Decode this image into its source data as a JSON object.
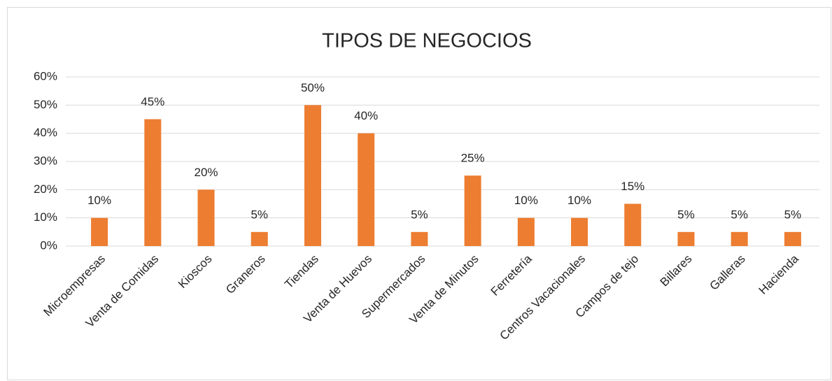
{
  "chart_data": {
    "type": "bar",
    "title": "TIPOS DE NEGOCIOS",
    "categories": [
      "Microempresas",
      "Venta de Comidas",
      "Kioscos",
      "Graneros",
      "Tiendas",
      "Venta de Huevos",
      "Supermercados",
      "Venta de Minutos",
      "Ferretería",
      "Centros Vacacionales",
      "Campos de tejo",
      "Billares",
      "Galleras",
      "Hacienda"
    ],
    "values": [
      10,
      45,
      20,
      5,
      50,
      40,
      5,
      25,
      10,
      10,
      15,
      5,
      5,
      5
    ],
    "value_labels": [
      "10%",
      "45%",
      "20%",
      "5%",
      "50%",
      "40%",
      "5%",
      "25%",
      "10%",
      "10%",
      "15%",
      "5%",
      "5%",
      "5%"
    ],
    "color": "#ed7d31",
    "ylim": [
      0,
      60
    ],
    "yticks": [
      {
        "value": 0,
        "label": "0%"
      },
      {
        "value": 10,
        "label": "10%"
      },
      {
        "value": 20,
        "label": "20%"
      },
      {
        "value": 30,
        "label": "30%"
      },
      {
        "value": 40,
        "label": "40%"
      },
      {
        "value": 50,
        "label": "50%"
      },
      {
        "value": 60,
        "label": "60%"
      }
    ],
    "grid": true
  }
}
